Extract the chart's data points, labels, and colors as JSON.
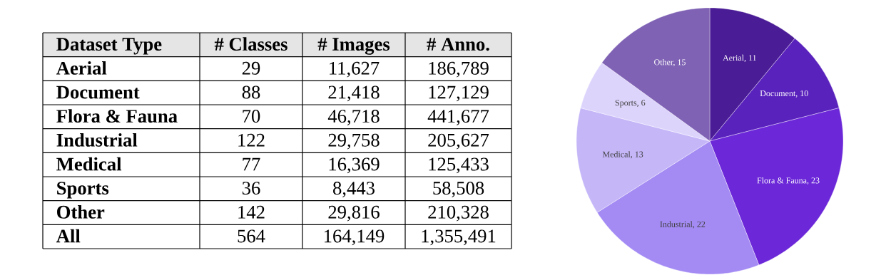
{
  "chart_data": [
    {
      "type": "other",
      "annotations": [
        "Dataset Type",
        "# Classes",
        "# Images",
        "# Anno.",
        "Aerial",
        "29",
        "11,627",
        "186,789",
        "Document",
        "88",
        "21,418",
        "127,129",
        "Flora & Fauna",
        "70",
        "46,718",
        "441,677",
        "Industrial",
        "122",
        "29,758",
        "205,627",
        "Medical",
        "77",
        "16,369",
        "125,433",
        "Sports",
        "36",
        "8,443",
        "58,508",
        "Other",
        "142",
        "29,816",
        "210,328",
        "All",
        "564",
        "164,149",
        "1,355,491"
      ]
    },
    {
      "type": "pie",
      "categories": [
        null,
        null,
        null,
        null,
        null,
        null,
        null
      ],
      "values": [
        11,
        10,
        23,
        22,
        13,
        6,
        15
      ],
      "value_labels": [
        "Aerial, 11",
        "Document, 10",
        "Flora & Fauna, 23",
        "Industrial, 22",
        "Medical, 13",
        "Sports, 6",
        "Other, 15"
      ],
      "colors": [
        "#4a1c96",
        "#5a22bd",
        "#6b27d8",
        "#a48bf4",
        "#c5b6f8",
        "#ddd4fc",
        "#7f62b4"
      ]
    }
  ]
}
